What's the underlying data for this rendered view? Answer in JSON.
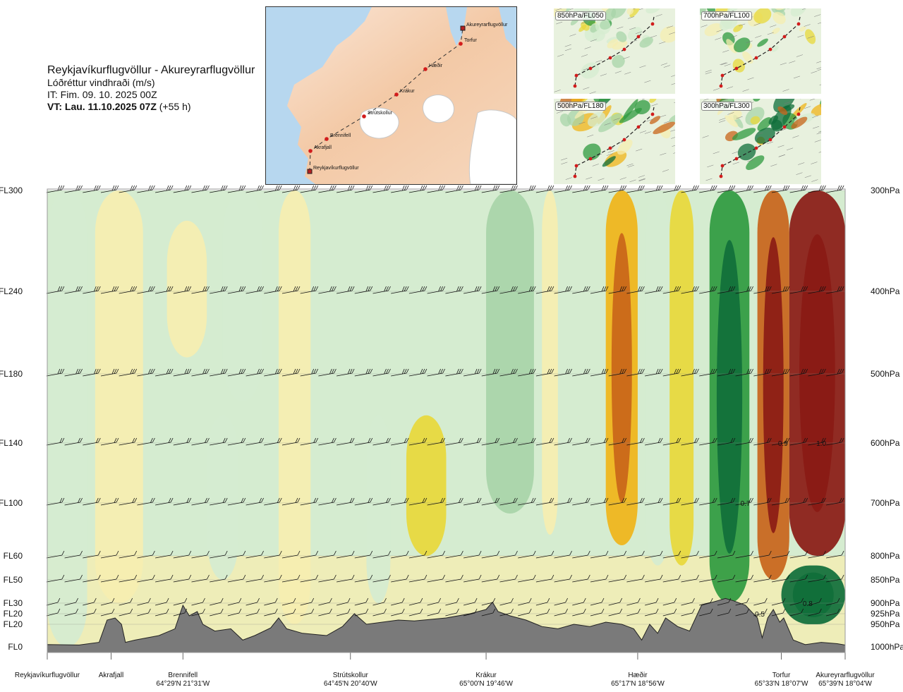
{
  "title": {
    "route": "Reykjavíkurflugvöllur - Akureyrarflugvöllur",
    "variable": "Lóðréttur vindhraði (m/s)",
    "issue_time": "IT: Fim. 09. 10. 2025 00Z",
    "valid_prefix": "VT: Lau. 11.10.2025 07Z",
    "valid_suffix": " (+55 h)"
  },
  "map": {
    "waypoints": [
      "Akureyrarflugvöllur",
      "Torfur",
      "Hæðir",
      "Krákur",
      "Strútskollur",
      "Brennifell",
      "Akrafjall",
      "Reykjavíkurflugvöllur"
    ]
  },
  "panels": [
    {
      "label": "850hPa/FL050"
    },
    {
      "label": "700hPa/FL100"
    },
    {
      "label": "500hPa/FL180"
    },
    {
      "label": "300hPa/FL300"
    }
  ],
  "colors": {
    "strong_down": "#0f6e3a",
    "down": "#2f9a3f",
    "weak_down": "#a8d4a8",
    "calm_green": "#d5ecd0",
    "calm_yellow": "#f6eeb0",
    "weak_up": "#e8d83a",
    "up": "#f0b418",
    "strong_up": "#c8641a",
    "extreme_up": "#8a1a14",
    "terrain": "#7a7a7a"
  },
  "chart_data": {
    "type": "heatmap",
    "title": "Lóðréttur vindhraði (m/s)",
    "xlabel": "",
    "ylabel": "",
    "left_axis_labels": [
      "FL300",
      "FL240",
      "FL180",
      "FL140",
      "FL100",
      "FL60",
      "FL50",
      "FL30",
      "FL20",
      "FL20",
      "FL0"
    ],
    "right_axis_labels": [
      "300hPa",
      "400hPa",
      "500hPa",
      "600hPa",
      "700hPa",
      "800hPa",
      "850hPa",
      "900hPa",
      "925hPa",
      "950hPa",
      "1000hPa"
    ],
    "pressure_levels": [
      300,
      400,
      500,
      600,
      700,
      800,
      850,
      900,
      925,
      950,
      1000
    ],
    "locations": [
      {
        "name": "Reykjavíkurflugvöllur",
        "coord": "",
        "distance": 0
      },
      {
        "name": "Akrafjall",
        "coord": "",
        "distance": 8
      },
      {
        "name": "Brennifell",
        "coord": "64°29'N 21°31'W",
        "distance": 17
      },
      {
        "name": "Strútskollur",
        "coord": "64°45'N 20°40'W",
        "distance": 38
      },
      {
        "name": "Krákur",
        "coord": "65°00'N 19°46'W",
        "distance": 55
      },
      {
        "name": "Hæðir",
        "coord": "65°17'N 18°56'W",
        "distance": 74
      },
      {
        "name": "Torfur",
        "coord": "65°33'N 18°07'W",
        "distance": 92
      },
      {
        "name": "Akureyrarflugvöllur",
        "coord": "65°39'N 18°04'W",
        "distance": 100
      }
    ],
    "contour_labels": [
      {
        "text": "0.9",
        "distance": 92.2,
        "pressure": 600
      },
      {
        "text": "1.0",
        "distance": 97,
        "pressure": 600
      },
      {
        "text": "0.7",
        "distance": 87.5,
        "pressure": 700
      },
      {
        "text": "0.8",
        "distance": 95.3,
        "pressure": 900
      },
      {
        "text": "0.5",
        "distance": 89.3,
        "pressure": 925
      }
    ],
    "bands": [
      {
        "x0": 0,
        "x1": 5,
        "p0": 300,
        "p1": 1000,
        "value": 0.0
      },
      {
        "x0": 6,
        "x1": 12,
        "p0": 300,
        "p1": 900,
        "value": 0.05
      },
      {
        "x0": 15,
        "x1": 20,
        "p0": 330,
        "p1": 480,
        "value": 0.1
      },
      {
        "x0": 22,
        "x1": 27,
        "p0": 300,
        "p1": 540,
        "value": -0.05
      },
      {
        "x0": 20,
        "x1": 24,
        "p0": 560,
        "p1": 850,
        "value": -0.1
      },
      {
        "x0": 29,
        "x1": 33,
        "p0": 300,
        "p1": 950,
        "value": 0.05
      },
      {
        "x0": 40,
        "x1": 43,
        "p0": 560,
        "p1": 900,
        "value": -0.1
      },
      {
        "x0": 45,
        "x1": 50,
        "p0": 560,
        "p1": 800,
        "value": 0.15
      },
      {
        "x0": 55,
        "x1": 61,
        "p0": 300,
        "p1": 720,
        "value": -0.3
      },
      {
        "x0": 62,
        "x1": 64,
        "p0": 300,
        "p1": 760,
        "value": 0.05
      },
      {
        "x0": 70,
        "x1": 74,
        "p0": 300,
        "p1": 780,
        "value": 0.5
      },
      {
        "x0": 75,
        "x1": 78,
        "p0": 300,
        "p1": 820,
        "value": -0.1
      },
      {
        "x0": 78,
        "x1": 81,
        "p0": 300,
        "p1": 820,
        "value": 0.4
      },
      {
        "x0": 83,
        "x1": 88,
        "p0": 300,
        "p1": 900,
        "value": -0.5
      },
      {
        "x0": 89,
        "x1": 93,
        "p0": 300,
        "p1": 850,
        "value": 0.6
      },
      {
        "x0": 93,
        "x1": 100,
        "p0": 300,
        "p1": 800,
        "value": 1.0
      },
      {
        "x0": 92,
        "x1": 100,
        "p0": 820,
        "p1": 950,
        "value": -0.8
      }
    ],
    "terrain_profile": [
      [
        0,
        995
      ],
      [
        4,
        996
      ],
      [
        6.5,
        990
      ],
      [
        7.5,
        940
      ],
      [
        8.5,
        935
      ],
      [
        9.3,
        950
      ],
      [
        9.8,
        990
      ],
      [
        11,
        985
      ],
      [
        14,
        975
      ],
      [
        16,
        960
      ],
      [
        17,
        905
      ],
      [
        17.8,
        930
      ],
      [
        18.8,
        920
      ],
      [
        19.5,
        950
      ],
      [
        21,
        965
      ],
      [
        23,
        960
      ],
      [
        24.5,
        985
      ],
      [
        26,
        975
      ],
      [
        28,
        958
      ],
      [
        29,
        935
      ],
      [
        30,
        960
      ],
      [
        32,
        970
      ],
      [
        35,
        975
      ],
      [
        37,
        955
      ],
      [
        38.5,
        925
      ],
      [
        40,
        950
      ],
      [
        42,
        945
      ],
      [
        44,
        940
      ],
      [
        46,
        942
      ],
      [
        50,
        935
      ],
      [
        53,
        925
      ],
      [
        55,
        915
      ],
      [
        55.8,
        898
      ],
      [
        56.5,
        920
      ],
      [
        58,
        930
      ],
      [
        60,
        940
      ],
      [
        62,
        955
      ],
      [
        64,
        960
      ],
      [
        66,
        950
      ],
      [
        68,
        955
      ],
      [
        70,
        945
      ],
      [
        72,
        950
      ],
      [
        73.5,
        960
      ],
      [
        74.5,
        985
      ],
      [
        75.5,
        950
      ],
      [
        76.5,
        970
      ],
      [
        77.5,
        935
      ],
      [
        79,
        955
      ],
      [
        80.5,
        965
      ],
      [
        82,
        905
      ],
      [
        84,
        895
      ],
      [
        85,
        890
      ],
      [
        86,
        895
      ],
      [
        87.5,
        905
      ],
      [
        89,
        935
      ],
      [
        89.6,
        980
      ],
      [
        90.3,
        935
      ],
      [
        91,
        915
      ],
      [
        91.8,
        945
      ],
      [
        92.3,
        935
      ],
      [
        93.5,
        985
      ],
      [
        95,
        995
      ],
      [
        97,
        990
      ],
      [
        99,
        993
      ],
      [
        100,
        996
      ]
    ],
    "barb_levels": [
      300,
      400,
      500,
      600,
      700,
      800,
      850,
      900,
      925
    ],
    "xlim": [
      0,
      100
    ],
    "ylim": [
      1000,
      300
    ]
  }
}
